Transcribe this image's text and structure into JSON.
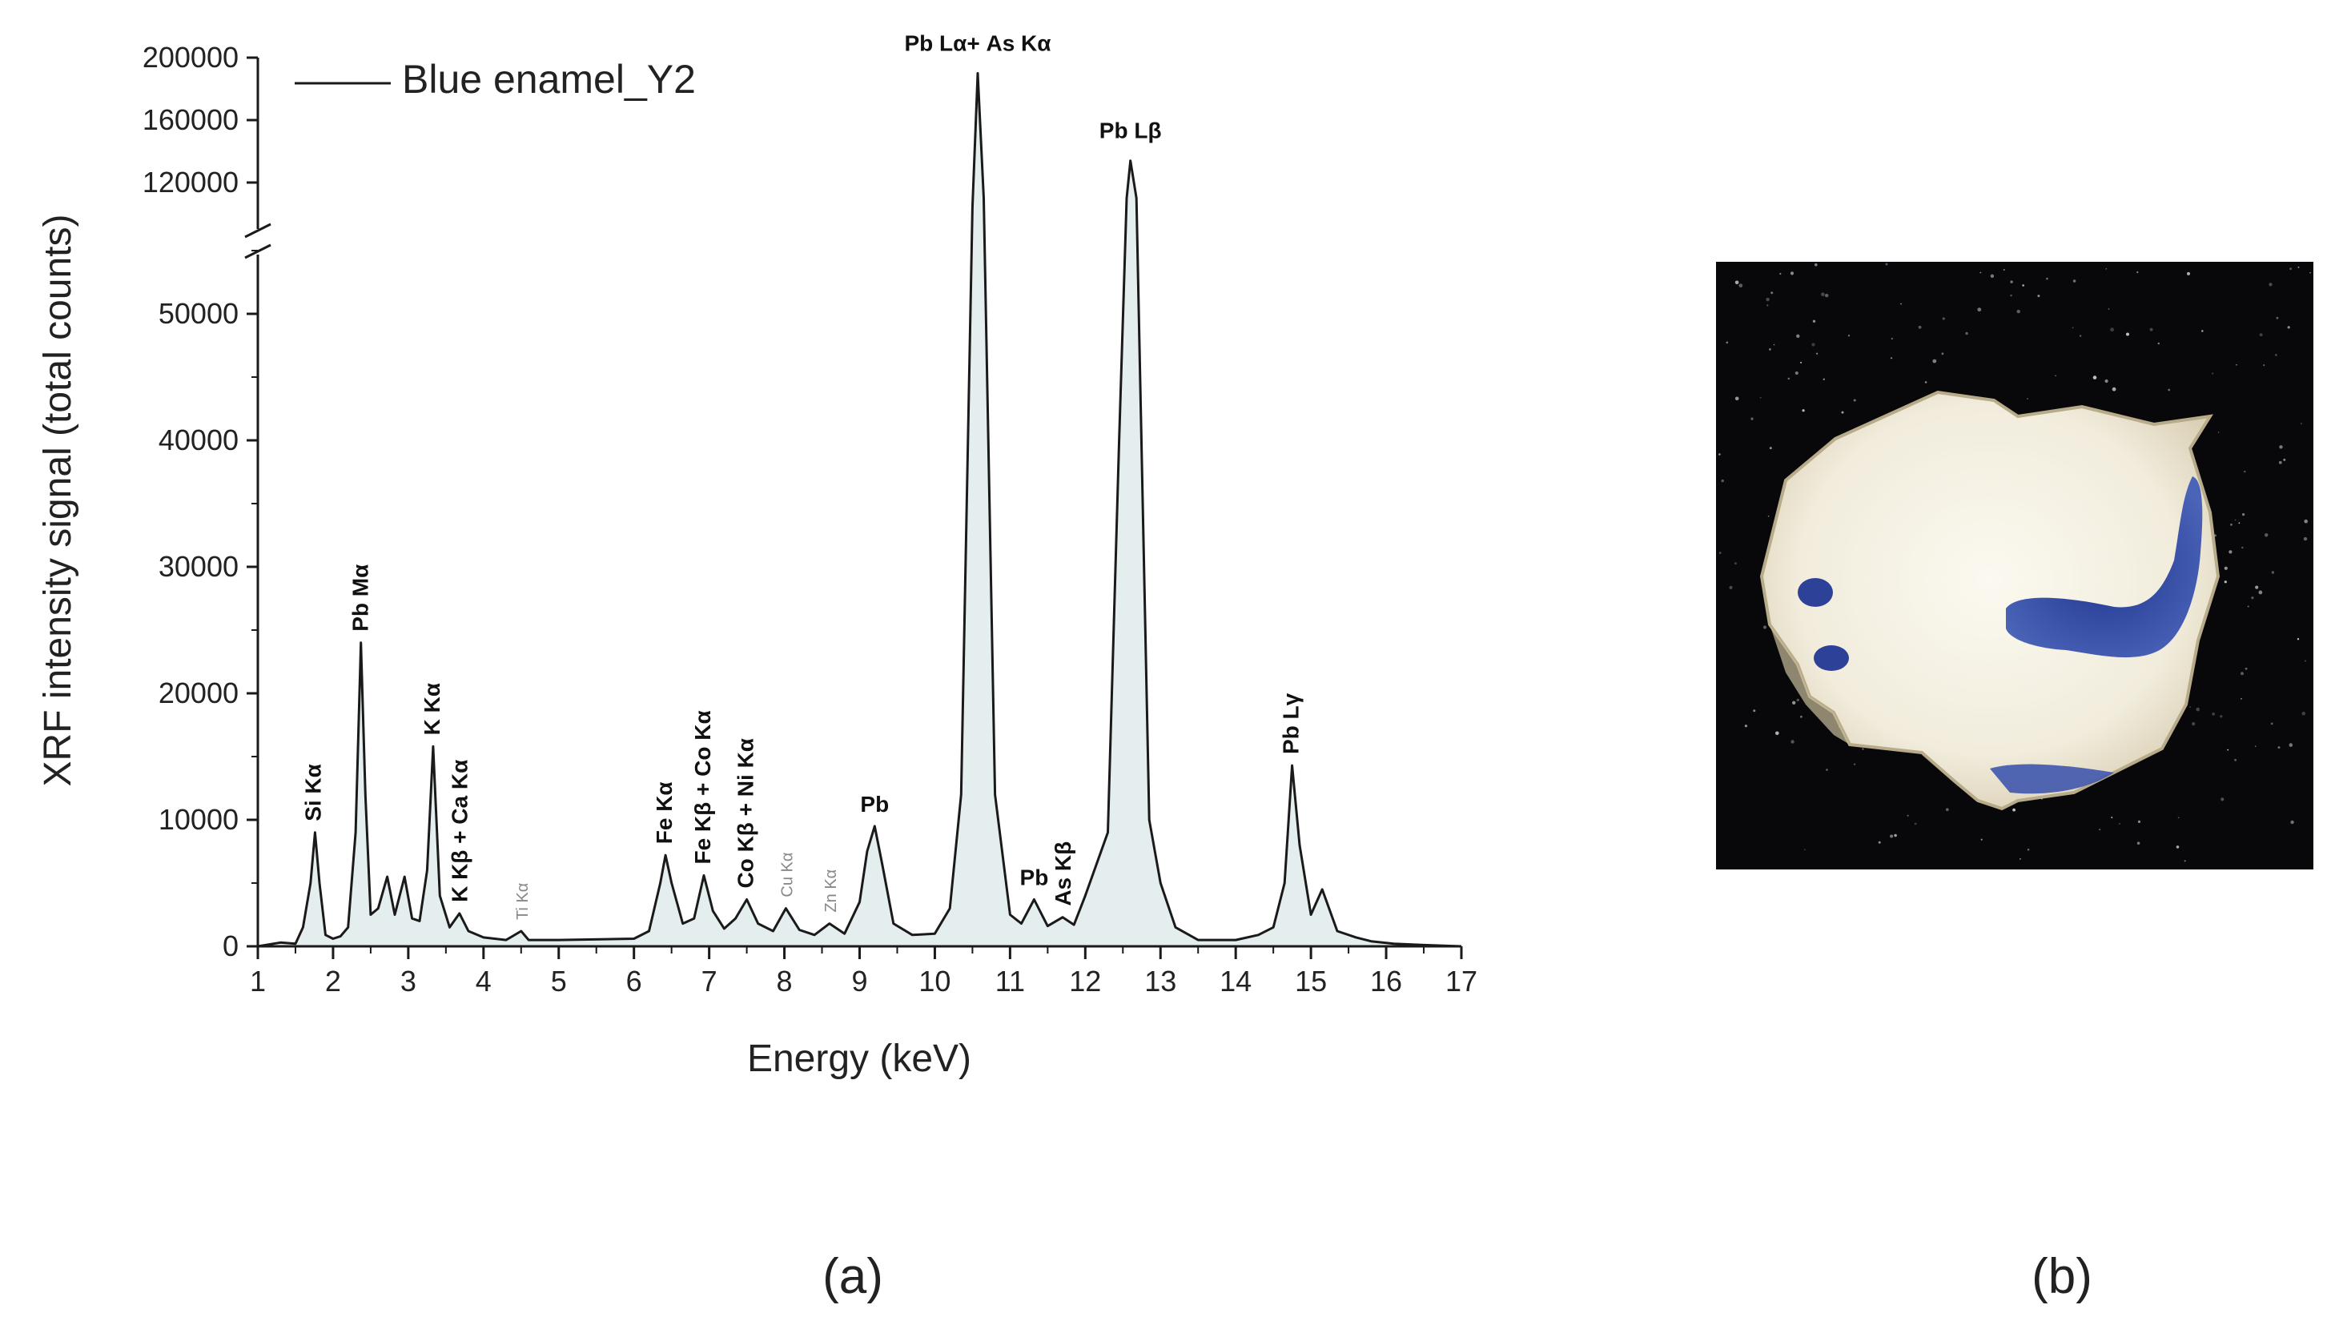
{
  "panels": {
    "a_label": "(a)",
    "b_label": "(b)"
  },
  "colors": {
    "line": "#1a1a1a",
    "fill": "#e4eeee",
    "photo_background": "#08080a",
    "enamel_white": "#f3efe2",
    "cobalt_blue": "#2b3f9c"
  },
  "chart_data": {
    "type": "area",
    "xlabel": "Energy (keV)",
    "ylabel": "XRF intensity signal (total counts)",
    "xlim": [
      1,
      17
    ],
    "x_ticks": [
      "1",
      "2",
      "3",
      "4",
      "5",
      "6",
      "7",
      "8",
      "9",
      "10",
      "11",
      "12",
      "13",
      "14",
      "15",
      "16",
      "17"
    ],
    "y_axis_broken": true,
    "y_segments": [
      {
        "range": [
          0,
          55000
        ],
        "ticks": [
          "0",
          "10000",
          "20000",
          "30000",
          "40000",
          "50000"
        ]
      },
      {
        "range": [
          110000,
          200000
        ],
        "ticks": [
          "120000",
          "160000",
          "200000"
        ]
      }
    ],
    "grid": false,
    "legend": {
      "position": "top-left",
      "entries": [
        "Blue enamel_Y2"
      ]
    },
    "series": [
      {
        "name": "Blue enamel_Y2",
        "x": [
          1.0,
          1.3,
          1.5,
          1.6,
          1.7,
          1.76,
          1.82,
          1.9,
          2.0,
          2.1,
          2.2,
          2.3,
          2.37,
          2.43,
          2.5,
          2.6,
          2.72,
          2.82,
          2.95,
          3.05,
          3.15,
          3.25,
          3.33,
          3.42,
          3.55,
          3.68,
          3.8,
          4.0,
          4.3,
          4.5,
          4.6,
          5.0,
          6.0,
          6.2,
          6.35,
          6.42,
          6.5,
          6.65,
          6.8,
          6.93,
          7.05,
          7.2,
          7.35,
          7.5,
          7.65,
          7.85,
          8.02,
          8.2,
          8.4,
          8.6,
          8.8,
          9.0,
          9.1,
          9.2,
          9.3,
          9.45,
          9.7,
          10.0,
          10.2,
          10.35,
          10.5,
          10.57,
          10.65,
          10.8,
          11.0,
          11.15,
          11.32,
          11.5,
          11.7,
          11.85,
          12.0,
          12.15,
          12.3,
          12.45,
          12.55,
          12.6,
          12.68,
          12.85,
          13.0,
          13.2,
          13.5,
          14.0,
          14.3,
          14.5,
          14.65,
          14.75,
          14.85,
          15.0,
          15.15,
          15.35,
          15.6,
          15.8,
          16.1,
          16.5,
          17.0
        ],
        "y": [
          0,
          300,
          200,
          1500,
          5000,
          9000,
          5000,
          900,
          600,
          800,
          1500,
          9000,
          24000,
          12000,
          2500,
          3000,
          5500,
          2500,
          5500,
          2200,
          2000,
          6000,
          15800,
          4000,
          1500,
          2600,
          1200,
          700,
          500,
          1200,
          500,
          500,
          600,
          1200,
          5000,
          7200,
          5000,
          1800,
          2200,
          5600,
          2800,
          1400,
          2200,
          3700,
          1800,
          1200,
          3000,
          1300,
          900,
          1800,
          1000,
          3500,
          7500,
          9500,
          6500,
          1800,
          900,
          1000,
          3000,
          12000,
          100000,
          190000,
          110000,
          12000,
          2500,
          1800,
          3700,
          1600,
          2300,
          1700,
          4000,
          6500,
          9000,
          40000,
          110000,
          134000,
          110000,
          10000,
          5000,
          1500,
          500,
          500,
          900,
          1500,
          5000,
          14300,
          8000,
          2500,
          4500,
          1200,
          700,
          400,
          200,
          100,
          0
        ]
      }
    ],
    "annotations": [
      {
        "text": "Si Kα",
        "x": 1.75,
        "y": 9000,
        "faint": false
      },
      {
        "text": "Pb Mα",
        "x": 2.38,
        "y": 24000,
        "faint": false
      },
      {
        "text": "K Kα",
        "x": 3.33,
        "y": 15800,
        "faint": false
      },
      {
        "text": "K Kβ + Ca Kα",
        "x": 3.7,
        "y": 2600,
        "faint": false
      },
      {
        "text": "Ti Kα",
        "x": 4.5,
        "y": 1200,
        "faint": true
      },
      {
        "text": "Fe Kα",
        "x": 6.42,
        "y": 7200,
        "faint": false
      },
      {
        "text": "Fe Kβ + Co Kα",
        "x": 6.93,
        "y": 5600,
        "faint": false
      },
      {
        "text": "Co Kβ + Ni Kα",
        "x": 7.5,
        "y": 3700,
        "faint": false
      },
      {
        "text": "Cu Kα",
        "x": 8.02,
        "y": 3000,
        "faint": true
      },
      {
        "text": "Zn Kα",
        "x": 8.6,
        "y": 1800,
        "faint": true
      },
      {
        "text": "Pb",
        "x": 9.2,
        "y": 9500,
        "faint": false
      },
      {
        "text": "Pb Lα+ As Kα",
        "x": 10.57,
        "y": 190000,
        "faint": false
      },
      {
        "text": "Pb",
        "x": 11.32,
        "y": 3700,
        "faint": false
      },
      {
        "text": "As Kβ",
        "x": 11.72,
        "y": 2300,
        "faint": false
      },
      {
        "text": "Pb Lβ",
        "x": 12.6,
        "y": 134000,
        "faint": false
      },
      {
        "text": "Pb Lγ",
        "x": 14.75,
        "y": 14300,
        "faint": false
      }
    ]
  }
}
